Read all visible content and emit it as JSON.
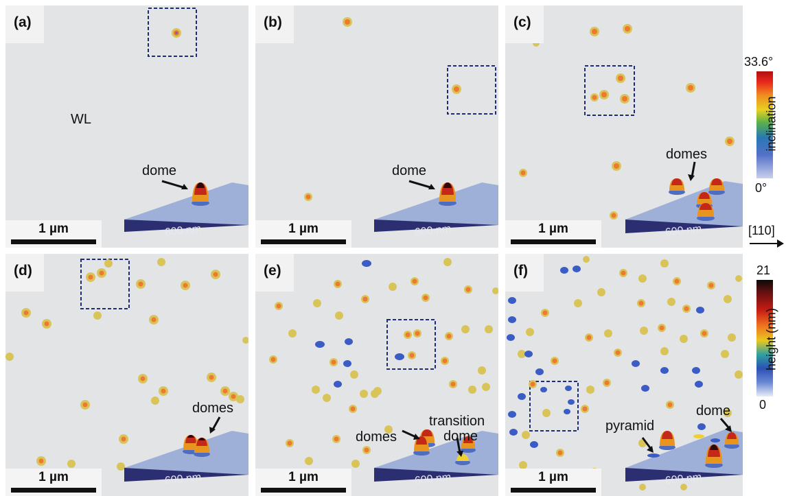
{
  "panels": [
    {
      "id": "a",
      "label": "(a)",
      "scale": "1 µm",
      "inset": "600 nm",
      "annotations": [
        "WL",
        "dome"
      ]
    },
    {
      "id": "b",
      "label": "(b)",
      "scale": "1 µm",
      "inset": "600 nm",
      "annotations": [
        "dome"
      ]
    },
    {
      "id": "c",
      "label": "(c)",
      "scale": "1 µm",
      "inset": "600 nm",
      "annotations": [
        "domes"
      ]
    },
    {
      "id": "d",
      "label": "(d)",
      "scale": "1 µm",
      "inset": "600 nm",
      "annotations": [
        "domes"
      ]
    },
    {
      "id": "e",
      "label": "(e)",
      "scale": "1 µm",
      "inset": "600 nm",
      "annotations": [
        "domes",
        "transition",
        "dome"
      ]
    },
    {
      "id": "f",
      "label": "(f)",
      "scale": "1 µm",
      "inset": "600 nm",
      "annotations": [
        "pyramid",
        "dome"
      ]
    }
  ],
  "legend_inclination": {
    "max": "33.6°",
    "min": "0°",
    "title": "inclination"
  },
  "legend_height": {
    "max": "21",
    "min": "0",
    "title": "height (nm)"
  },
  "direction": "[110]",
  "colors": {
    "background": "#e3e4e6",
    "box": "#1e2a7a",
    "slab": "#2b2f72"
  }
}
